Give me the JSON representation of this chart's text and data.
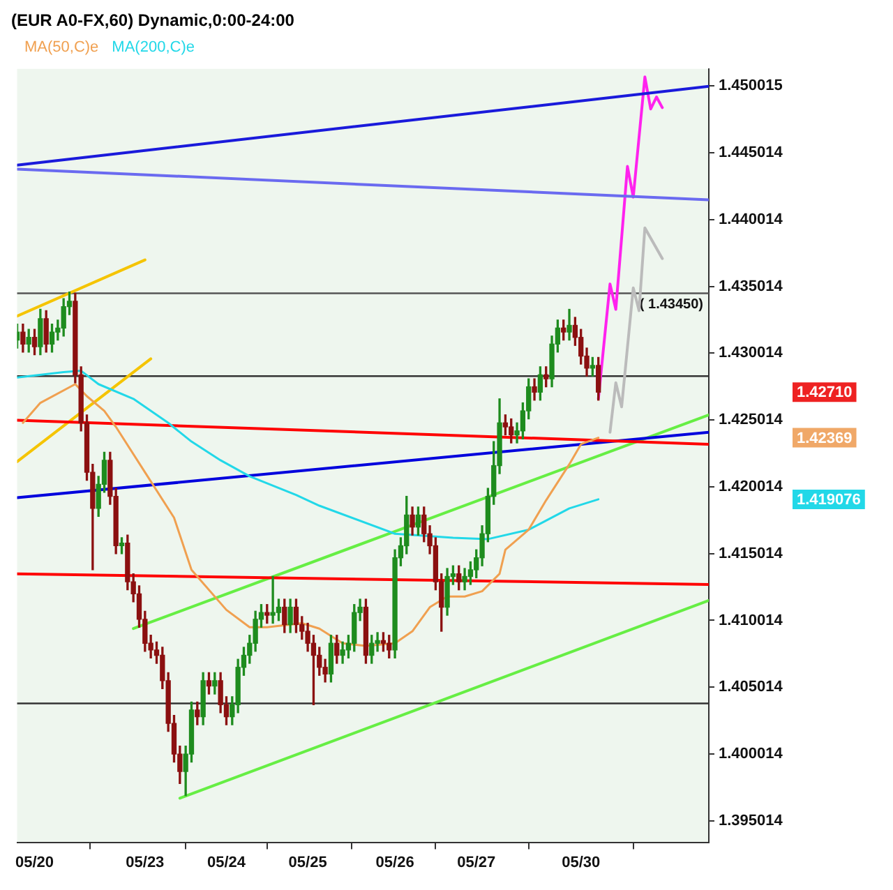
{
  "chart_data": {
    "type": "candlestick",
    "title": "(EUR A0-FX,60) Dynamic,0:00-24:00",
    "legend": "top left",
    "categories": [
      null,
      null,
      null,
      "05/20",
      null,
      null,
      null,
      null,
      null,
      null,
      null,
      null,
      null,
      null,
      null,
      null,
      null,
      null,
      null,
      null,
      null,
      null,
      "05/23",
      null,
      null,
      null,
      null,
      null,
      null,
      null,
      null,
      null,
      null,
      null,
      null,
      null,
      "05/24",
      null,
      null,
      null,
      null,
      null,
      null,
      null,
      null,
      null,
      null,
      null,
      null,
      null,
      "05/25",
      null,
      null,
      null,
      null,
      null,
      null,
      null,
      null,
      null,
      null,
      null,
      null,
      null,
      null,
      "05/26",
      null,
      null,
      null,
      null,
      null,
      null,
      null,
      null,
      null,
      null,
      null,
      null,
      null,
      "05/27",
      null,
      null,
      null,
      null,
      null,
      null,
      null,
      null,
      null,
      null,
      null,
      null,
      null,
      null,
      null,
      null,
      null,
      "05/30",
      null,
      null,
      null,
      null,
      null,
      null,
      null,
      null,
      null,
      null,
      null,
      null,
      null,
      null,
      null,
      null,
      null,
      null,
      null,
      null,
      null,
      null
    ],
    "ohlc": [
      [
        1.431,
        1.4322,
        1.4304,
        1.4316
      ],
      [
        1.4316,
        1.4322,
        1.4301,
        1.4307
      ],
      [
        1.4307,
        1.4318,
        1.4301,
        1.4312
      ],
      [
        1.4312,
        1.4318,
        1.4299,
        1.4305
      ],
      [
        1.4305,
        1.4333,
        1.4299,
        1.4326
      ],
      [
        1.4326,
        1.4332,
        1.4301,
        1.4307
      ],
      [
        1.4307,
        1.4322,
        1.4301,
        1.4316
      ],
      [
        1.4316,
        1.4325,
        1.431,
        1.4319
      ],
      [
        1.4319,
        1.4341,
        1.4313,
        1.4335
      ],
      [
        1.4335,
        1.4346,
        1.4329,
        1.4339
      ],
      [
        1.4339,
        1.4345,
        1.4278,
        1.4284
      ],
      [
        1.4284,
        1.429,
        1.4242,
        1.4248
      ],
      [
        1.4248,
        1.4254,
        1.4205,
        1.4211
      ],
      [
        1.4211,
        1.4217,
        1.4138,
        1.4184
      ],
      [
        1.4184,
        1.4208,
        1.4178,
        1.4202
      ],
      [
        1.4202,
        1.4226,
        1.4196,
        1.422
      ],
      [
        1.422,
        1.4226,
        1.4187,
        1.4193
      ],
      [
        1.4193,
        1.4199,
        1.415,
        1.4156
      ],
      [
        1.4156,
        1.4162,
        1.415,
        1.4158
      ],
      [
        1.4158,
        1.4164,
        1.4123,
        1.4129
      ],
      [
        1.4129,
        1.4135,
        1.4114,
        1.412
      ],
      [
        1.412,
        1.4126,
        1.4095,
        1.4101
      ],
      [
        1.4101,
        1.4107,
        1.4077,
        1.4083
      ],
      [
        1.4083,
        1.4089,
        1.4072,
        1.4078
      ],
      [
        1.4078,
        1.4084,
        1.4068,
        1.4074
      ],
      [
        1.4074,
        1.408,
        1.4049,
        1.4055
      ],
      [
        1.4055,
        1.4061,
        1.4017,
        1.4023
      ],
      [
        1.4023,
        1.4029,
        1.3994,
        1.4
      ],
      [
        1.4,
        1.4006,
        1.3978,
        1.3987
      ],
      [
        1.3987,
        1.4006,
        1.3969,
        1.4
      ],
      [
        1.4,
        1.4039,
        1.3994,
        1.4033
      ],
      [
        1.4033,
        1.4039,
        1.4022,
        1.4028
      ],
      [
        1.4028,
        1.4061,
        1.4022,
        1.4055
      ],
      [
        1.4055,
        1.4061,
        1.4045,
        1.4051
      ],
      [
        1.4051,
        1.4061,
        1.4045,
        1.4055
      ],
      [
        1.4055,
        1.4061,
        1.4031,
        1.4037
      ],
      [
        1.4037,
        1.4043,
        1.4022,
        1.4028
      ],
      [
        1.4028,
        1.4043,
        1.4022,
        1.4037
      ],
      [
        1.4037,
        1.4071,
        1.4031,
        1.4065
      ],
      [
        1.4065,
        1.408,
        1.4059,
        1.4074
      ],
      [
        1.4074,
        1.4089,
        1.4068,
        1.4083
      ],
      [
        1.4083,
        1.4107,
        1.4077,
        1.4101
      ],
      [
        1.4101,
        1.4112,
        1.4095,
        1.4106
      ],
      [
        1.4106,
        1.4112,
        1.4098,
        1.4104
      ],
      [
        1.4104,
        1.4133,
        1.4098,
        1.4106
      ],
      [
        1.4106,
        1.4116,
        1.41,
        1.411
      ],
      [
        1.411,
        1.4116,
        1.4091,
        1.4097
      ],
      [
        1.4097,
        1.4116,
        1.4091,
        1.411
      ],
      [
        1.411,
        1.4116,
        1.4091,
        1.4097
      ],
      [
        1.4097,
        1.4103,
        1.4086,
        1.4092
      ],
      [
        1.4092,
        1.4098,
        1.4077,
        1.4083
      ],
      [
        1.4083,
        1.4089,
        1.4037,
        1.4074
      ],
      [
        1.4074,
        1.408,
        1.4059,
        1.4065
      ],
      [
        1.4065,
        1.4071,
        1.4054,
        1.406
      ],
      [
        1.406,
        1.4089,
        1.4054,
        1.4083
      ],
      [
        1.4083,
        1.4089,
        1.4068,
        1.4074
      ],
      [
        1.4074,
        1.4084,
        1.4068,
        1.4078
      ],
      [
        1.4078,
        1.4089,
        1.4072,
        1.4083
      ],
      [
        1.4083,
        1.4112,
        1.4077,
        1.4106
      ],
      [
        1.4106,
        1.4116,
        1.41,
        1.411
      ],
      [
        1.411,
        1.4116,
        1.4068,
        1.4074
      ],
      [
        1.4074,
        1.4089,
        1.4068,
        1.4083
      ],
      [
        1.4083,
        1.4091,
        1.4077,
        1.4085
      ],
      [
        1.4085,
        1.4091,
        1.4077,
        1.4083
      ],
      [
        1.4083,
        1.4089,
        1.4072,
        1.4078
      ],
      [
        1.4078,
        1.4153,
        1.4072,
        1.4147
      ],
      [
        1.4147,
        1.4162,
        1.4141,
        1.4156
      ],
      [
        1.4156,
        1.4193,
        1.415,
        1.4179
      ],
      [
        1.4179,
        1.4185,
        1.4164,
        1.417
      ],
      [
        1.417,
        1.4185,
        1.4164,
        1.4179
      ],
      [
        1.4179,
        1.4185,
        1.4159,
        1.4165
      ],
      [
        1.4165,
        1.4171,
        1.415,
        1.4156
      ],
      [
        1.4156,
        1.4162,
        1.4123,
        1.4129
      ],
      [
        1.4129,
        1.4135,
        1.4092,
        1.411
      ],
      [
        1.411,
        1.4139,
        1.4104,
        1.4133
      ],
      [
        1.4133,
        1.4141,
        1.4127,
        1.4135
      ],
      [
        1.4135,
        1.4141,
        1.4123,
        1.4129
      ],
      [
        1.4129,
        1.4139,
        1.4123,
        1.4133
      ],
      [
        1.4133,
        1.4144,
        1.4127,
        1.4138
      ],
      [
        1.4138,
        1.4153,
        1.4132,
        1.4147
      ],
      [
        1.4147,
        1.4171,
        1.4141,
        1.4165
      ],
      [
        1.4165,
        1.4199,
        1.4159,
        1.4193
      ],
      [
        1.4193,
        1.4234,
        1.4187,
        1.4216
      ],
      [
        1.4216,
        1.4266,
        1.421,
        1.4248
      ],
      [
        1.4248,
        1.4254,
        1.4239,
        1.4245
      ],
      [
        1.4245,
        1.4251,
        1.4233,
        1.4239
      ],
      [
        1.4239,
        1.4248,
        1.4233,
        1.4242
      ],
      [
        1.4242,
        1.4263,
        1.4236,
        1.4257
      ],
      [
        1.4257,
        1.4281,
        1.4251,
        1.4275
      ],
      [
        1.4275,
        1.4281,
        1.4265,
        1.4271
      ],
      [
        1.4271,
        1.429,
        1.4265,
        1.4284
      ],
      [
        1.4284,
        1.429,
        1.4275,
        1.4281
      ],
      [
        1.4281,
        1.4313,
        1.4275,
        1.4307
      ],
      [
        1.4307,
        1.4325,
        1.4301,
        1.4319
      ],
      [
        1.4319,
        1.4325,
        1.431,
        1.4316
      ],
      [
        1.4316,
        1.4333,
        1.431,
        1.4321
      ],
      [
        1.4321,
        1.4327,
        1.4306,
        1.4312
      ],
      [
        1.4312,
        1.4318,
        1.4292,
        1.4298
      ],
      [
        1.4298,
        1.4304,
        1.4283,
        1.4289
      ],
      [
        1.4289,
        1.4297,
        1.4283,
        1.4291
      ],
      [
        1.4291,
        1.4297,
        1.4265,
        1.4271
      ],
      null,
      null,
      null,
      null,
      null,
      null,
      null,
      null,
      null,
      null,
      null,
      null,
      null,
      null,
      null,
      null,
      null,
      null,
      null
    ],
    "series": [
      {
        "type": "line",
        "name": "MA(50,C)e",
        "color": "#f0a050",
        "values": [
          null,
          1.4248,
          null,
          null,
          1.4263,
          null,
          null,
          null,
          null,
          null,
          1.4277,
          null,
          1.4268,
          null,
          null,
          1.4257,
          null,
          1.4245,
          null,
          null,
          null,
          null,
          1.4211,
          null,
          null,
          null,
          null,
          1.4177,
          null,
          null,
          1.4138,
          null,
          null,
          null,
          null,
          null,
          1.4108,
          null,
          null,
          null,
          1.4095,
          null,
          null,
          1.4095,
          null,
          null,
          null,
          null,
          null,
          1.4098,
          null,
          null,
          1.4094,
          null,
          null,
          null,
          1.4083,
          null,
          null,
          null,
          1.4081,
          null,
          null,
          null,
          null,
          1.4083,
          null,
          null,
          1.4092,
          null,
          null,
          1.411,
          null,
          null,
          1.4118,
          null,
          null,
          1.4118,
          null,
          null,
          1.4122,
          null,
          null,
          1.4135,
          1.4153,
          null,
          null,
          null,
          1.4168,
          null,
          null,
          1.419,
          null,
          null,
          null,
          1.4217,
          null,
          1.4232,
          null,
          null,
          1.42369,
          null,
          null,
          null,
          null,
          null,
          null,
          null,
          null,
          null,
          null,
          null,
          null,
          null,
          null,
          null,
          null,
          null,
          null,
          null
        ]
      },
      {
        "type": "line",
        "name": "MA(200,C)e",
        "color": "#22d8e8",
        "values": [
          1.4282,
          null,
          null,
          null,
          null,
          null,
          null,
          null,
          1.4286,
          null,
          null,
          1.4287,
          null,
          null,
          1.4277,
          null,
          null,
          null,
          null,
          null,
          1.4266,
          null,
          null,
          null,
          null,
          null,
          1.4248,
          null,
          null,
          null,
          1.4234,
          null,
          null,
          null,
          null,
          1.422,
          null,
          null,
          null,
          null,
          1.4208,
          null,
          null,
          null,
          null,
          null,
          null,
          null,
          1.4194,
          null,
          null,
          null,
          1.4186,
          null,
          null,
          null,
          null,
          null,
          null,
          null,
          null,
          null,
          null,
          null,
          null,
          1.4165,
          null,
          null,
          null,
          null,
          null,
          null,
          null,
          null,
          null,
          1.4162,
          null,
          null,
          null,
          null,
          null,
          1.4161,
          null,
          null,
          null,
          null,
          null,
          null,
          1.4168,
          null,
          null,
          null,
          null,
          null,
          null,
          1.4184,
          null,
          null,
          null,
          null,
          1.419076,
          null,
          null,
          null,
          null,
          null,
          null,
          null,
          null,
          null,
          null,
          null,
          null,
          null,
          null,
          null,
          null,
          null,
          null,
          null
        ]
      },
      {
        "type": "line",
        "color": "#ff0000",
        "values": [
          1.425,
          null,
          null,
          null,
          null,
          null,
          null,
          null,
          null,
          null,
          null,
          null,
          null,
          null,
          null,
          null,
          null,
          null,
          null,
          null,
          null,
          null,
          null,
          null,
          null,
          null,
          null,
          null,
          null,
          null,
          null,
          null,
          null,
          null,
          null,
          null,
          null,
          null,
          null,
          null,
          null,
          null,
          null,
          null,
          null,
          null,
          null,
          null,
          null,
          null,
          null,
          null,
          null,
          null,
          null,
          null,
          null,
          null,
          null,
          null,
          null,
          null,
          null,
          null,
          null,
          null,
          null,
          null,
          null,
          null,
          null,
          null,
          null,
          null,
          null,
          null,
          null,
          null,
          null,
          null,
          null,
          null,
          null,
          null,
          null,
          null,
          null,
          null,
          null,
          null,
          null,
          null,
          null,
          null,
          null,
          null,
          null,
          null,
          null,
          null,
          null,
          null,
          null,
          null,
          null,
          null,
          null,
          null,
          null,
          null,
          null,
          null,
          null,
          null,
          null,
          null,
          null,
          null,
          null,
          1.4232
        ]
      },
      {
        "type": "line",
        "color": "#ff0000",
        "values": [
          1.4135,
          null,
          null,
          null,
          null,
          null,
          null,
          null,
          null,
          null,
          null,
          null,
          null,
          null,
          null,
          null,
          null,
          null,
          null,
          null,
          null,
          null,
          null,
          null,
          null,
          null,
          null,
          null,
          null,
          null,
          null,
          null,
          null,
          null,
          null,
          null,
          null,
          null,
          null,
          null,
          null,
          null,
          null,
          null,
          null,
          null,
          null,
          null,
          null,
          null,
          null,
          null,
          null,
          null,
          null,
          null,
          null,
          null,
          null,
          null,
          null,
          null,
          null,
          null,
          null,
          null,
          null,
          null,
          null,
          null,
          null,
          null,
          null,
          null,
          null,
          null,
          null,
          null,
          null,
          null,
          null,
          null,
          null,
          null,
          null,
          null,
          null,
          null,
          null,
          null,
          null,
          null,
          null,
          null,
          null,
          null,
          null,
          null,
          null,
          null,
          null,
          null,
          null,
          null,
          null,
          null,
          null,
          null,
          null,
          null,
          null,
          null,
          null,
          null,
          null,
          null,
          null,
          null,
          null,
          1.4127
        ]
      },
      {
        "type": "line",
        "color": "#0000dd",
        "values": [
          1.4192,
          null,
          null,
          null,
          null,
          null,
          null,
          null,
          null,
          null,
          null,
          null,
          null,
          null,
          null,
          null,
          null,
          null,
          null,
          null,
          null,
          null,
          null,
          null,
          null,
          null,
          null,
          null,
          null,
          null,
          null,
          null,
          null,
          null,
          null,
          null,
          null,
          null,
          null,
          null,
          null,
          null,
          null,
          null,
          null,
          null,
          null,
          null,
          null,
          null,
          null,
          null,
          null,
          null,
          null,
          null,
          null,
          null,
          null,
          null,
          null,
          null,
          null,
          null,
          null,
          null,
          null,
          null,
          null,
          null,
          null,
          null,
          null,
          null,
          null,
          null,
          null,
          null,
          null,
          null,
          null,
          null,
          null,
          null,
          null,
          null,
          null,
          null,
          null,
          null,
          null,
          null,
          null,
          null,
          null,
          null,
          null,
          null,
          null,
          null,
          null,
          null,
          null,
          null,
          null,
          null,
          null,
          null,
          null,
          null,
          null,
          null,
          null,
          null,
          null,
          null,
          null,
          null,
          null,
          1.4241
        ]
      },
      {
        "type": "line",
        "color": "#1a1adb",
        "values": [
          1.4441,
          null,
          null,
          null,
          null,
          null,
          null,
          null,
          null,
          null,
          null,
          null,
          null,
          null,
          null,
          null,
          null,
          null,
          null,
          null,
          null,
          null,
          null,
          null,
          null,
          null,
          null,
          null,
          null,
          null,
          null,
          null,
          null,
          null,
          null,
          null,
          null,
          null,
          null,
          null,
          null,
          null,
          null,
          null,
          null,
          null,
          null,
          null,
          null,
          null,
          null,
          null,
          null,
          null,
          null,
          null,
          null,
          null,
          null,
          null,
          null,
          null,
          null,
          null,
          null,
          null,
          null,
          null,
          null,
          null,
          null,
          null,
          null,
          null,
          null,
          null,
          null,
          null,
          null,
          null,
          null,
          null,
          null,
          null,
          null,
          null,
          null,
          null,
          null,
          null,
          null,
          null,
          null,
          null,
          null,
          null,
          null,
          null,
          null,
          null,
          null,
          null,
          null,
          null,
          null,
          null,
          null,
          null,
          null,
          null,
          null,
          null,
          null,
          null,
          null,
          null,
          null,
          null,
          null,
          1.45
        ]
      },
      {
        "type": "line",
        "color": "#6a6af0",
        "values": [
          1.4438,
          null,
          null,
          null,
          null,
          null,
          null,
          null,
          null,
          null,
          null,
          null,
          null,
          null,
          null,
          null,
          null,
          null,
          null,
          null,
          null,
          null,
          null,
          null,
          null,
          null,
          null,
          null,
          null,
          null,
          null,
          null,
          null,
          null,
          null,
          null,
          null,
          null,
          null,
          null,
          null,
          null,
          null,
          null,
          null,
          null,
          null,
          null,
          null,
          null,
          null,
          null,
          null,
          null,
          null,
          null,
          null,
          null,
          null,
          null,
          null,
          null,
          null,
          null,
          null,
          null,
          null,
          null,
          null,
          null,
          null,
          null,
          null,
          null,
          null,
          null,
          null,
          null,
          null,
          null,
          null,
          null,
          null,
          null,
          null,
          null,
          null,
          null,
          null,
          null,
          null,
          null,
          null,
          null,
          null,
          null,
          null,
          null,
          null,
          null,
          null,
          null,
          null,
          null,
          null,
          null,
          null,
          null,
          null,
          null,
          null,
          null,
          null,
          null,
          null,
          null,
          null,
          null,
          null,
          1.4415
        ]
      },
      {
        "type": "line",
        "color": "#66ee44",
        "values": [
          null,
          null,
          null,
          null,
          null,
          null,
          null,
          null,
          null,
          null,
          null,
          null,
          null,
          null,
          null,
          null,
          null,
          null,
          null,
          null,
          1.4094,
          null,
          null,
          null,
          null,
          null,
          null,
          null,
          null,
          null,
          null,
          null,
          null,
          null,
          null,
          null,
          null,
          null,
          null,
          null,
          null,
          null,
          null,
          null,
          null,
          null,
          null,
          null,
          null,
          null,
          null,
          null,
          null,
          null,
          null,
          null,
          null,
          null,
          null,
          null,
          null,
          null,
          null,
          null,
          null,
          null,
          null,
          null,
          null,
          null,
          null,
          null,
          null,
          null,
          null,
          null,
          null,
          null,
          null,
          null,
          null,
          null,
          null,
          null,
          null,
          null,
          null,
          null,
          null,
          null,
          null,
          null,
          null,
          null,
          null,
          null,
          null,
          null,
          null,
          null,
          null,
          null,
          null,
          null,
          null,
          null,
          null,
          null,
          null,
          null,
          null,
          null,
          null,
          null,
          null,
          null,
          null,
          null,
          null,
          1.4254
        ]
      },
      {
        "type": "line",
        "color": "#66ee44",
        "values": [
          null,
          null,
          null,
          null,
          null,
          null,
          null,
          null,
          null,
          null,
          null,
          null,
          null,
          null,
          null,
          null,
          null,
          null,
          null,
          null,
          null,
          null,
          null,
          null,
          null,
          null,
          null,
          null,
          1.3967,
          null,
          null,
          null,
          null,
          null,
          null,
          null,
          null,
          null,
          null,
          null,
          null,
          null,
          null,
          null,
          null,
          null,
          null,
          null,
          null,
          null,
          null,
          null,
          null,
          null,
          null,
          null,
          null,
          null,
          null,
          null,
          null,
          null,
          null,
          null,
          null,
          null,
          null,
          null,
          null,
          null,
          null,
          null,
          null,
          null,
          null,
          null,
          null,
          null,
          null,
          null,
          null,
          null,
          null,
          null,
          null,
          null,
          null,
          null,
          null,
          null,
          null,
          null,
          null,
          null,
          null,
          null,
          null,
          null,
          null,
          null,
          null,
          null,
          null,
          null,
          null,
          null,
          null,
          null,
          null,
          null,
          null,
          null,
          null,
          null,
          null,
          null,
          null,
          null,
          null,
          1.4115
        ]
      },
      {
        "type": "line",
        "color": "#f5c400",
        "values": [
          1.4328,
          null,
          null,
          null,
          null,
          null,
          null,
          null,
          null,
          null,
          null,
          null,
          null,
          null,
          null,
          null,
          null,
          null,
          null,
          null,
          null,
          null,
          1.437,
          null,
          null,
          null,
          null,
          null,
          null,
          null,
          null,
          null,
          null,
          null,
          null,
          null,
          null,
          null,
          null,
          null,
          null,
          null,
          null,
          null,
          null,
          null,
          null,
          null,
          null,
          null,
          null,
          null,
          null,
          null,
          null,
          null,
          null,
          null,
          null,
          null,
          null,
          null,
          null,
          null,
          null,
          null,
          null,
          null,
          null,
          null,
          null,
          null,
          null,
          null,
          null,
          null,
          null,
          null,
          null,
          null,
          null,
          null,
          null,
          null,
          null,
          null,
          null,
          null,
          null,
          null,
          null,
          null,
          null,
          null,
          null,
          null,
          null,
          null,
          null,
          null,
          null,
          null,
          null,
          null,
          null,
          null,
          null,
          null,
          null,
          null,
          null,
          null,
          null,
          null,
          null,
          null,
          null,
          null,
          null,
          null
        ]
      },
      {
        "type": "line",
        "color": "#f5c400",
        "values": [
          1.4219,
          null,
          null,
          null,
          null,
          null,
          null,
          null,
          null,
          null,
          null,
          null,
          null,
          null,
          null,
          null,
          null,
          null,
          null,
          null,
          null,
          null,
          null,
          1.4296,
          null,
          null,
          null,
          null,
          null,
          null,
          null,
          null,
          null,
          null,
          null,
          null,
          null,
          null,
          null,
          null,
          null,
          null,
          null,
          null,
          null,
          null,
          null,
          null,
          null,
          null,
          null,
          null,
          null,
          null,
          null,
          null,
          null,
          null,
          null,
          null,
          null,
          null,
          null,
          null,
          null,
          null,
          null,
          null,
          null,
          null,
          null,
          null,
          null,
          null,
          null,
          null,
          null,
          null,
          null,
          null,
          null,
          null,
          null,
          null,
          null,
          null,
          null,
          null,
          null,
          null,
          null,
          null,
          null,
          null,
          null,
          null,
          null,
          null,
          null,
          null,
          null,
          null,
          null,
          null,
          null,
          null,
          null,
          null,
          null,
          null,
          null,
          null,
          null,
          null,
          null,
          null,
          null,
          null,
          null,
          null
        ]
      },
      {
        "type": "line",
        "color": "#ff22ee",
        "values": [
          null,
          null,
          null,
          null,
          null,
          null,
          null,
          null,
          null,
          null,
          null,
          null,
          null,
          null,
          null,
          null,
          null,
          null,
          null,
          null,
          null,
          null,
          null,
          null,
          null,
          null,
          null,
          null,
          null,
          null,
          null,
          null,
          null,
          null,
          null,
          null,
          null,
          null,
          null,
          null,
          null,
          null,
          null,
          null,
          null,
          null,
          null,
          null,
          null,
          null,
          null,
          null,
          null,
          null,
          null,
          null,
          null,
          null,
          null,
          null,
          null,
          null,
          null,
          null,
          null,
          null,
          null,
          null,
          null,
          null,
          null,
          null,
          null,
          null,
          null,
          null,
          null,
          null,
          null,
          null,
          null,
          null,
          null,
          null,
          null,
          null,
          null,
          null,
          null,
          null,
          null,
          null,
          null,
          null,
          null,
          null,
          null,
          null,
          null,
          null,
          1.4266,
          null,
          1.4352,
          1.4333,
          null,
          1.444,
          1.4417,
          null,
          1.4507,
          1.4483,
          1.4492,
          1.4484,
          null,
          null,
          null,
          null,
          null,
          null,
          null,
          null
        ]
      },
      {
        "type": "line",
        "color": "#bbbbbb",
        "values": [
          null,
          null,
          null,
          null,
          null,
          null,
          null,
          null,
          null,
          null,
          null,
          null,
          null,
          null,
          null,
          null,
          null,
          null,
          null,
          null,
          null,
          null,
          null,
          null,
          null,
          null,
          null,
          null,
          null,
          null,
          null,
          null,
          null,
          null,
          null,
          null,
          null,
          null,
          null,
          null,
          null,
          null,
          null,
          null,
          null,
          null,
          null,
          null,
          null,
          null,
          null,
          null,
          null,
          null,
          null,
          null,
          null,
          null,
          null,
          null,
          null,
          null,
          null,
          null,
          null,
          null,
          null,
          null,
          null,
          null,
          null,
          null,
          null,
          null,
          null,
          null,
          null,
          null,
          null,
          null,
          null,
          null,
          null,
          null,
          null,
          null,
          null,
          null,
          null,
          null,
          null,
          null,
          null,
          null,
          null,
          null,
          null,
          null,
          null,
          null,
          null,
          null,
          1.4241,
          1.4278,
          1.426,
          null,
          1.4349,
          1.4332,
          1.4394,
          null,
          null,
          1.4371,
          null,
          null,
          null,
          null,
          null,
          null,
          null,
          null
        ]
      }
    ],
    "ref_lines": [
      {
        "axis": "y",
        "value": 1.4345,
        "label": "( 1.43450)",
        "color": "#555555"
      },
      {
        "axis": "y",
        "value": 1.4283,
        "color": "#333333"
      },
      {
        "axis": "y",
        "value": 1.4038,
        "color": "#333333"
      }
    ],
    "annotations": [
      "1.42710",
      "1.42369",
      "1.419076"
    ],
    "ylim": [
      1.3934,
      1.4513
    ],
    "yticks": [
      1.395014,
      1.400014,
      1.405014,
      1.410014,
      1.415014,
      1.420014,
      1.425014,
      1.430014,
      1.435014,
      1.440014,
      1.445014,
      1.450015
    ]
  }
}
